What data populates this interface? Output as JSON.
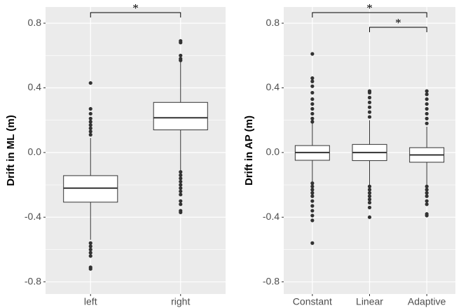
{
  "chart_data": [
    {
      "type": "box",
      "y_label": "Drift in ML (m)",
      "categories": [
        "left",
        "right"
      ],
      "boxes": [
        {
          "whisker_low": -0.54,
          "q1": -0.307,
          "median": -0.22,
          "q3": -0.143,
          "whisker_high": 0.09,
          "outliers": [
            0.43,
            0.27,
            0.24,
            0.21,
            0.19,
            0.17,
            0.15,
            0.13,
            0.11,
            -0.56,
            -0.58,
            -0.6,
            -0.62,
            -0.64,
            -0.71,
            -0.72
          ]
        },
        {
          "whisker_low": -0.11,
          "q1": 0.14,
          "median": 0.215,
          "q3": 0.31,
          "whisker_high": 0.56,
          "outliers": [
            0.57,
            0.58,
            0.6,
            0.68,
            0.69,
            -0.12,
            -0.14,
            -0.16,
            -0.18,
            -0.2,
            -0.22,
            -0.24,
            -0.26,
            -0.3,
            -0.32,
            -0.36,
            -0.37
          ]
        }
      ],
      "ylim": [
        -0.875,
        0.9
      ],
      "yticks": [
        0.8,
        0.4,
        {
          "value": 0,
          "label": "0.0"
        },
        -0.4,
        -0.8
      ],
      "yminor": [
        0.6,
        0.2,
        -0.2,
        -0.6
      ],
      "grid": true,
      "color": "#333333",
      "annotations": [
        {
          "text": "*",
          "from": 0,
          "to": 1
        }
      ]
    },
    {
      "type": "box",
      "y_label": "Drift in AP (m)",
      "categories": [
        "Constant",
        "Linear",
        "Adaptive"
      ],
      "boxes": [
        {
          "whisker_low": -0.18,
          "q1": -0.048,
          "median": 0.0,
          "q3": 0.043,
          "whisker_high": 0.18,
          "outliers": [
            0.61,
            0.46,
            0.44,
            0.41,
            0.37,
            0.33,
            0.3,
            0.27,
            0.24,
            0.21,
            0.19,
            -0.19,
            -0.21,
            -0.23,
            -0.25,
            -0.27,
            -0.3,
            -0.33,
            -0.36,
            -0.39,
            -0.42,
            -0.56
          ]
        },
        {
          "whisker_low": -0.2,
          "q1": -0.05,
          "median": 0.0,
          "q3": 0.05,
          "whisker_high": 0.2,
          "outliers": [
            0.38,
            0.37,
            0.34,
            0.31,
            0.28,
            0.25,
            0.22,
            -0.21,
            -0.23,
            -0.25,
            -0.27,
            -0.29,
            -0.31,
            -0.34,
            -0.4
          ]
        },
        {
          "whisker_low": -0.2,
          "q1": -0.06,
          "median": -0.015,
          "q3": 0.03,
          "whisker_high": 0.16,
          "outliers": [
            0.38,
            0.36,
            0.33,
            0.3,
            0.27,
            0.24,
            0.21,
            0.18,
            -0.21,
            -0.23,
            -0.25,
            -0.27,
            -0.3,
            -0.32,
            -0.38,
            -0.39
          ]
        }
      ],
      "ylim": [
        -0.875,
        0.9
      ],
      "yticks": [
        0.8,
        0.4,
        {
          "value": 0,
          "label": "0.0"
        },
        -0.4,
        -0.8
      ],
      "yminor": [
        0.6,
        0.2,
        -0.2,
        -0.6
      ],
      "grid": true,
      "color": "#333333",
      "annotations": [
        {
          "text": "*",
          "from": 0,
          "to": 2
        },
        {
          "text": "*",
          "from": 1,
          "to": 2
        }
      ]
    }
  ]
}
